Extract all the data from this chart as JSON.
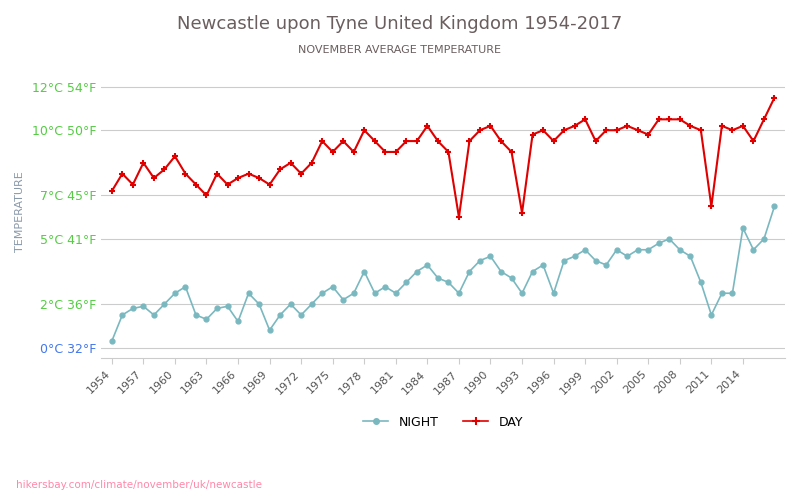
{
  "title": "Newcastle upon Tyne United Kingdom 1954-2017",
  "subtitle": "NOVEMBER AVERAGE TEMPERATURE",
  "ylabel": "TEMPERATURE",
  "source": "hikersbay.com/climate/november/uk/newcastle",
  "years": [
    1954,
    1955,
    1956,
    1957,
    1958,
    1959,
    1960,
    1961,
    1962,
    1963,
    1964,
    1965,
    1966,
    1967,
    1968,
    1969,
    1970,
    1971,
    1972,
    1973,
    1974,
    1975,
    1976,
    1977,
    1978,
    1979,
    1980,
    1981,
    1982,
    1983,
    1984,
    1985,
    1986,
    1987,
    1988,
    1989,
    1990,
    1991,
    1992,
    1993,
    1994,
    1995,
    1996,
    1997,
    1998,
    1999,
    2000,
    2001,
    2002,
    2003,
    2004,
    2005,
    2006,
    2007,
    2008,
    2009,
    2010,
    2011,
    2012,
    2013,
    2014,
    2015,
    2016,
    2017
  ],
  "night": [
    0.3,
    1.5,
    1.8,
    1.9,
    1.5,
    2.0,
    2.5,
    2.8,
    1.5,
    1.3,
    1.8,
    1.9,
    1.2,
    2.5,
    2.0,
    0.8,
    1.5,
    2.0,
    1.5,
    2.0,
    2.5,
    2.8,
    2.2,
    2.5,
    3.5,
    2.5,
    2.8,
    2.5,
    3.0,
    3.5,
    3.8,
    3.2,
    3.0,
    2.5,
    3.5,
    4.0,
    4.2,
    3.5,
    3.2,
    2.5,
    3.5,
    3.8,
    2.5,
    4.0,
    4.2,
    4.5,
    4.0,
    3.8,
    4.5,
    4.2,
    4.5,
    4.5,
    4.8,
    5.0,
    4.5,
    4.2,
    3.0,
    1.5,
    2.5,
    2.5,
    5.5,
    4.5,
    5.0,
    6.5
  ],
  "day": [
    7.2,
    8.0,
    7.5,
    8.5,
    7.8,
    8.2,
    8.8,
    8.0,
    7.5,
    7.0,
    8.0,
    7.5,
    7.8,
    8.0,
    7.8,
    7.5,
    8.2,
    8.5,
    8.0,
    8.5,
    9.5,
    9.0,
    9.5,
    9.0,
    10.0,
    9.5,
    9.0,
    9.0,
    9.5,
    9.5,
    10.2,
    9.5,
    9.0,
    6.0,
    9.5,
    10.0,
    10.2,
    9.5,
    9.0,
    6.2,
    9.8,
    10.0,
    9.5,
    10.0,
    10.2,
    10.5,
    9.5,
    10.0,
    10.0,
    10.2,
    10.0,
    9.8,
    10.5,
    10.5,
    10.5,
    10.2,
    10.0,
    6.5,
    10.2,
    10.0,
    10.2,
    9.5,
    10.5,
    11.5
  ],
  "yticks_c": [
    0,
    2,
    5,
    7,
    10,
    12
  ],
  "yticks_f": [
    32,
    36,
    41,
    45,
    50,
    54
  ],
  "ylim_c": [
    -0.5,
    13.0
  ],
  "xlim": [
    1953,
    2018
  ],
  "night_color": "#7ab8c0",
  "day_color": "#e00000",
  "title_color": "#6b5e5e",
  "subtitle_color": "#6b5e5e",
  "ylabel_color": "#8899aa",
  "ytick_color_green": "#55cc44",
  "ytick_color_blue": "#4477ee",
  "grid_color": "#cccccc",
  "bg_color": "#ffffff",
  "source_color": "#ff88aa",
  "xtick_years": [
    1954,
    1957,
    1960,
    1963,
    1966,
    1969,
    1972,
    1975,
    1978,
    1981,
    1984,
    1987,
    1990,
    1993,
    1996,
    1999,
    2002,
    2005,
    2008,
    2011,
    2014
  ]
}
